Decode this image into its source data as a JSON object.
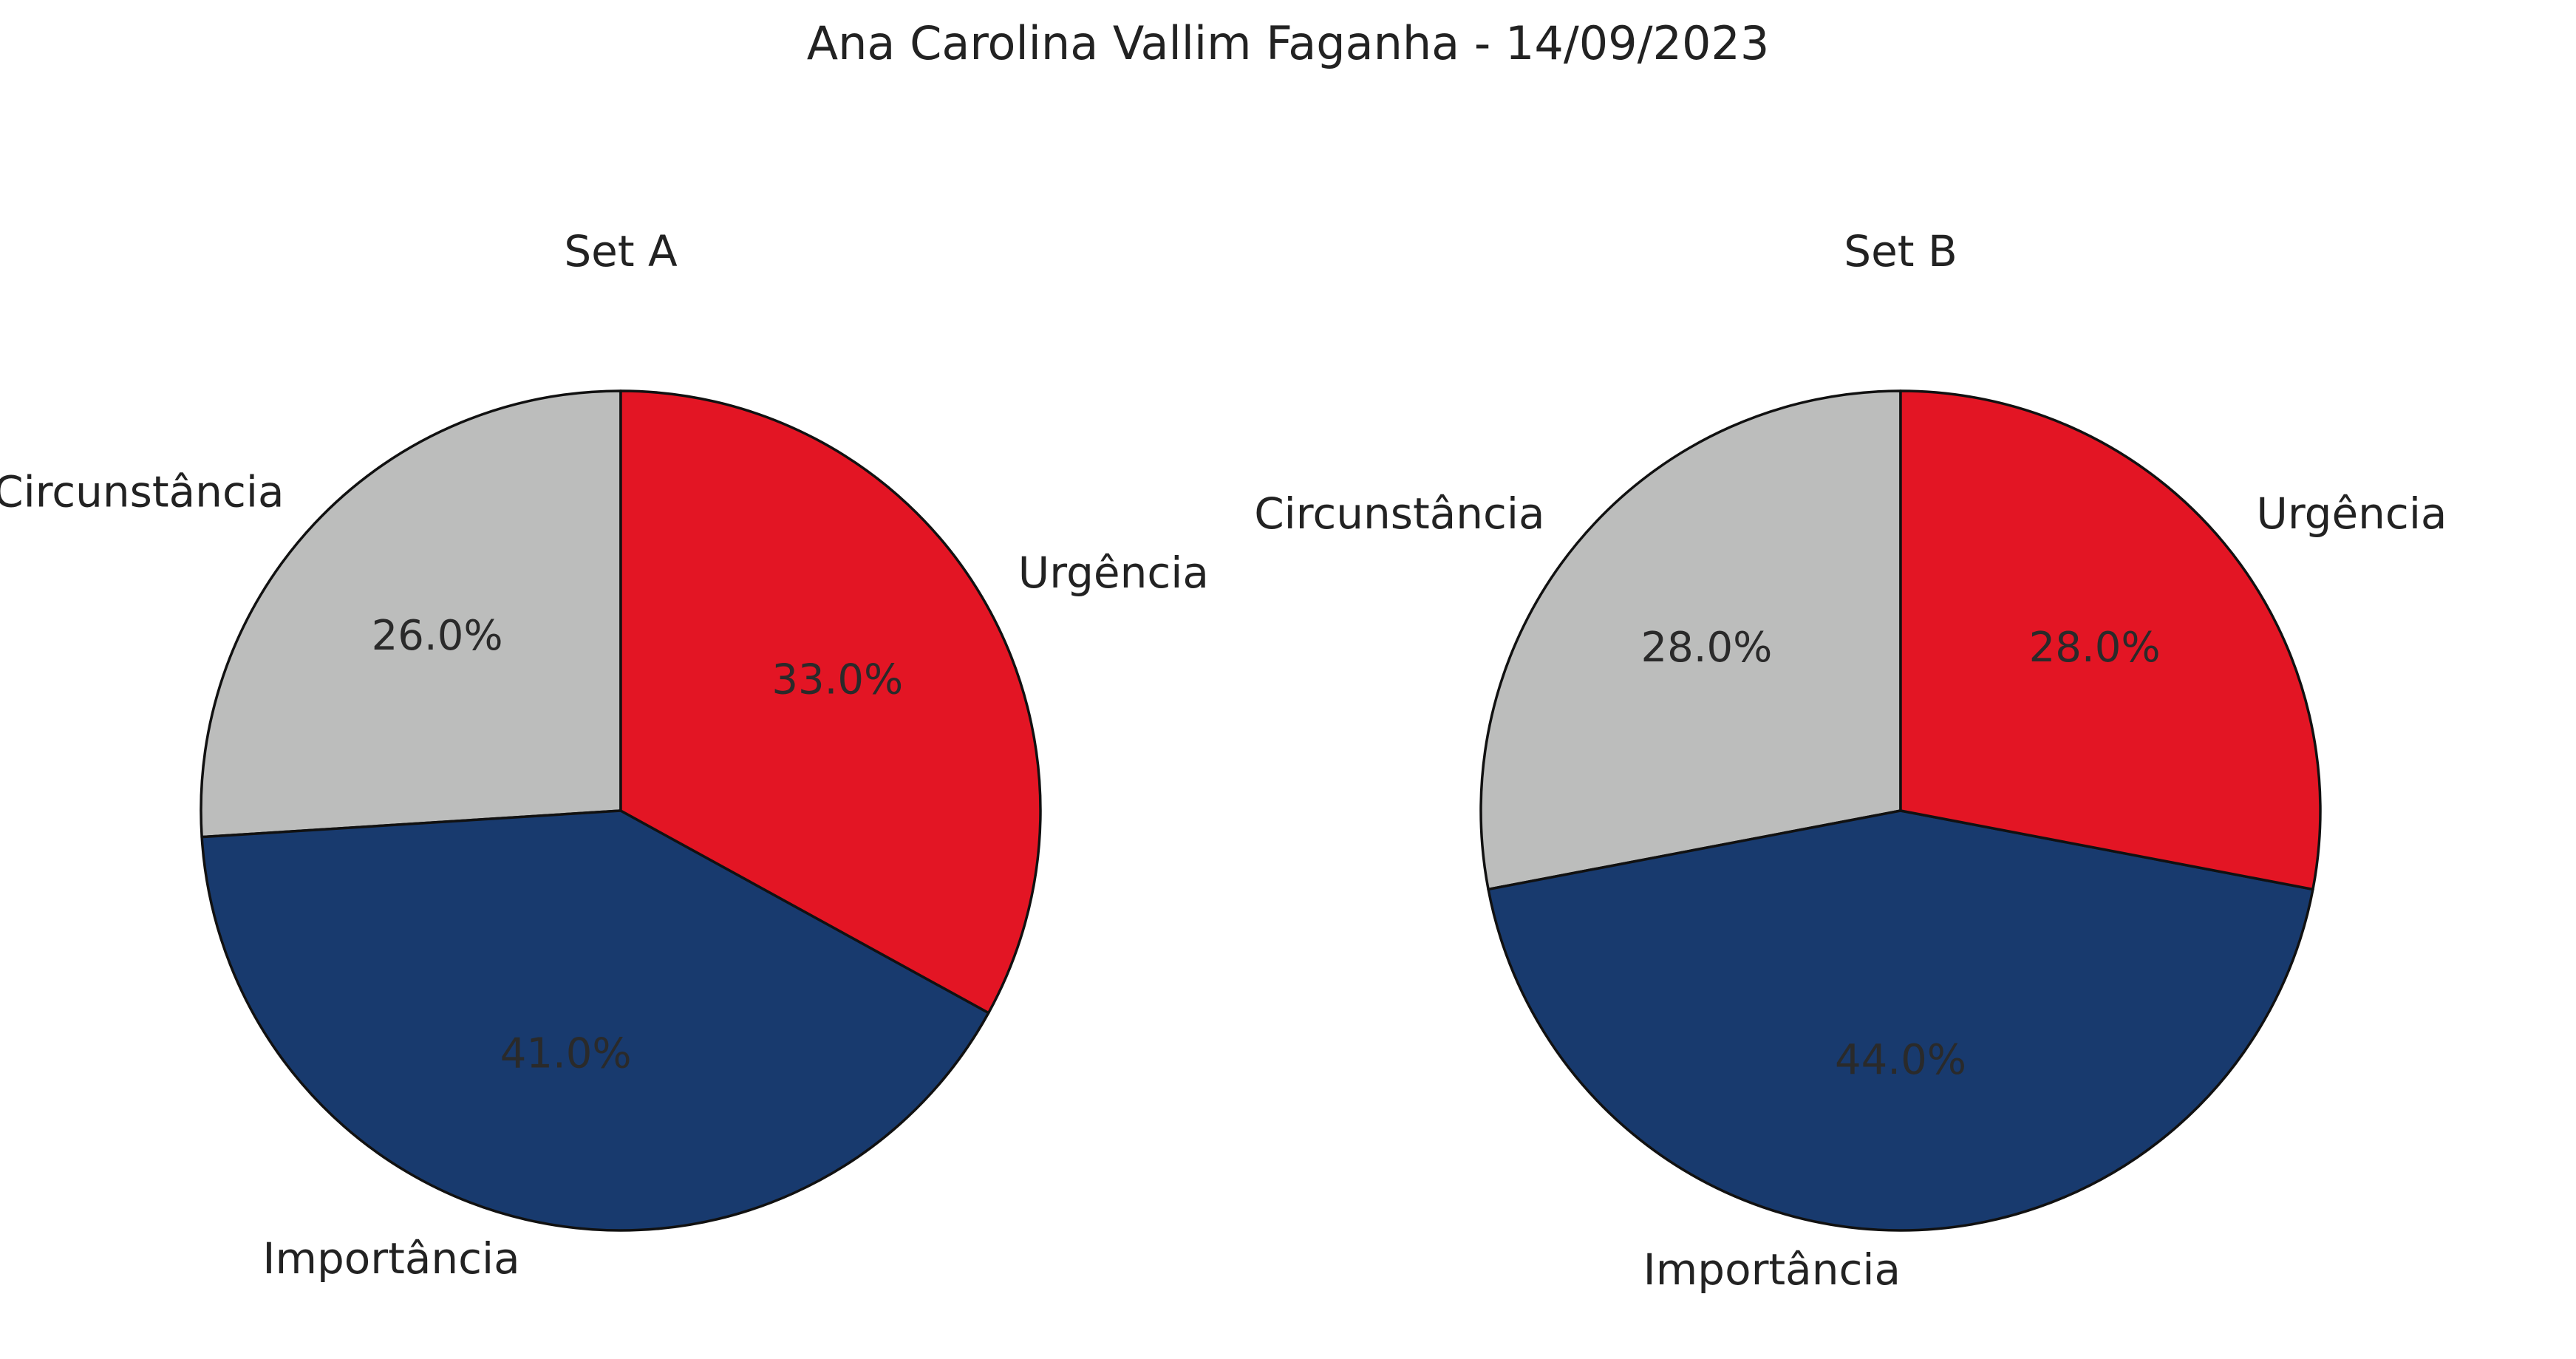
{
  "figure": {
    "title": "Ana Carolina Vallim Faganha - 14/09/2023"
  },
  "chart_data": [
    {
      "type": "pie",
      "title": "Set A",
      "start_angle_deg": 90,
      "direction": "counterclockwise",
      "slices": [
        {
          "label": "Circunstância",
          "value": 26.0,
          "pct_label": "26.0%",
          "color": "#bcbdbc"
        },
        {
          "label": "Importância",
          "value": 41.0,
          "pct_label": "41.0%",
          "color": "#183a6e"
        },
        {
          "label": "Urgência",
          "value": 33.0,
          "pct_label": "33.0%",
          "color": "#e31524"
        }
      ]
    },
    {
      "type": "pie",
      "title": "Set B",
      "start_angle_deg": 90,
      "direction": "counterclockwise",
      "slices": [
        {
          "label": "Circunstância",
          "value": 28.0,
          "pct_label": "28.0%",
          "color": "#bcbdbc"
        },
        {
          "label": "Importância",
          "value": 44.0,
          "pct_label": "44.0%",
          "color": "#183a6e"
        },
        {
          "label": "Urgência",
          "value": 28.0,
          "pct_label": "28.0%",
          "color": "#e31524"
        }
      ]
    }
  ]
}
